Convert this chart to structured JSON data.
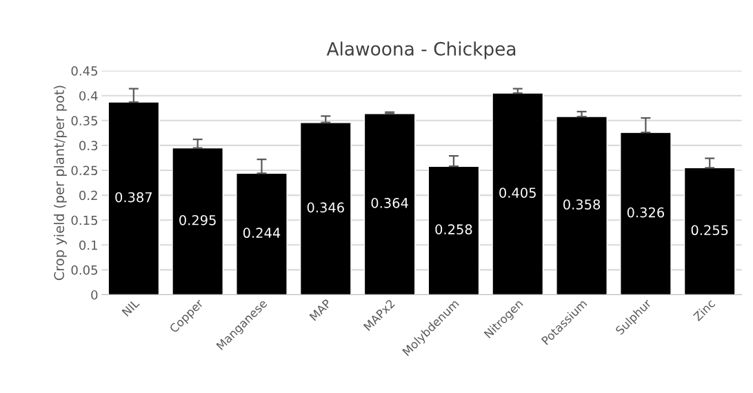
{
  "chart_data": {
    "type": "bar",
    "title": "Alawoona - Chickpea",
    "ylabel": "Crop yield (per plant/per pot)",
    "categories": [
      "NIL",
      "Copper",
      "Manganese",
      "MAP",
      "MAPx2",
      "Molybdenum",
      "Nitrogen",
      "Potassium",
      "Sulphur",
      "Zinc"
    ],
    "values": [
      0.387,
      0.295,
      0.244,
      0.346,
      0.364,
      0.258,
      0.405,
      0.358,
      0.326,
      0.255
    ],
    "errors": [
      [
        0.387,
        0.414
      ],
      [
        0.295,
        0.312
      ],
      [
        0.244,
        0.272
      ],
      [
        0.346,
        0.359
      ],
      [
        0.364,
        0.367
      ],
      [
        0.258,
        0.279
      ],
      [
        0.405,
        0.414
      ],
      [
        0.358,
        0.368
      ],
      [
        0.326,
        0.355
      ],
      [
        0.255,
        0.274
      ]
    ],
    "color": "#000000",
    "data_labels": true,
    "grid": "y",
    "ylim": [
      0,
      0.45
    ],
    "yticks": [
      0,
      {
        "value": 0.05,
        "label": "0.05"
      },
      {
        "value": 0.1,
        "label": "0.1"
      },
      {
        "value": 0.15,
        "label": "0.15"
      },
      {
        "value": 0.2,
        "label": "0.2"
      },
      {
        "value": 0.25,
        "label": "0.25"
      },
      {
        "value": 0.3,
        "label": "0.3"
      },
      {
        "value": 0.35,
        "label": "0.35"
      },
      {
        "value": 0.4,
        "label": "0.4"
      },
      {
        "value": 0.45,
        "label": "0.45"
      }
    ]
  }
}
